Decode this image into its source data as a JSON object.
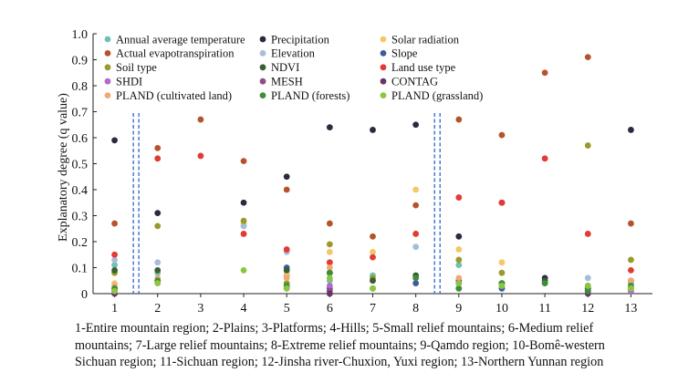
{
  "chart_data": {
    "type": "scatter",
    "ylabel": "Explanatory degree (q value)",
    "xlabel": "",
    "ylim": [
      0,
      1.0
    ],
    "yticks": [
      "0",
      "0.1",
      "0.2",
      "0.3",
      "0.4",
      "0.5",
      "0.6",
      "0.7",
      "0.8",
      "0.9",
      "1.0"
    ],
    "xlim": [
      0.5,
      13.5
    ],
    "x_ticks": [
      "1",
      "2",
      "3",
      "4",
      "5",
      "6",
      "7",
      "8",
      "9",
      "10",
      "11",
      "12",
      "13"
    ],
    "separators_after": [
      1.5,
      8.5
    ],
    "legend_position": "top",
    "series": [
      {
        "name": "Annual average temperature",
        "color": "#6cc3b1",
        "points": [
          [
            1,
            0.11
          ],
          [
            2,
            0.08
          ],
          [
            4,
            0.26
          ],
          [
            5,
            0.07
          ],
          [
            6,
            0.05
          ],
          [
            7,
            0.07
          ],
          [
            9,
            0.11
          ],
          [
            10,
            0.03
          ],
          [
            11,
            0.04
          ],
          [
            12,
            0.06
          ],
          [
            13,
            0.04
          ]
        ]
      },
      {
        "name": "Precipitation",
        "color": "#2b2a3f",
        "points": [
          [
            1,
            0.59
          ],
          [
            2,
            0.31
          ],
          [
            4,
            0.35
          ],
          [
            5,
            0.45
          ],
          [
            6,
            0.64
          ],
          [
            7,
            0.63
          ],
          [
            8,
            0.65
          ],
          [
            9,
            0.22
          ],
          [
            10,
            0.35
          ],
          [
            11,
            0.06
          ],
          [
            12,
            0.02
          ],
          [
            13,
            0.63
          ]
        ]
      },
      {
        "name": "Solar radiation",
        "color": "#f6c667",
        "points": [
          [
            1,
            0.04
          ],
          [
            4,
            0.27
          ],
          [
            5,
            0.08
          ],
          [
            6,
            0.16
          ],
          [
            7,
            0.16
          ],
          [
            8,
            0.4
          ],
          [
            9,
            0.17
          ],
          [
            10,
            0.12
          ],
          [
            12,
            0.02
          ],
          [
            13,
            0.02
          ]
        ]
      },
      {
        "name": "Actual evapotranspiration",
        "color": "#b5542c",
        "points": [
          [
            1,
            0.27
          ],
          [
            2,
            0.56
          ],
          [
            3,
            0.67
          ],
          [
            4,
            0.51
          ],
          [
            5,
            0.4
          ],
          [
            6,
            0.27
          ],
          [
            7,
            0.22
          ],
          [
            8,
            0.34
          ],
          [
            9,
            0.67
          ],
          [
            10,
            0.61
          ],
          [
            11,
            0.85
          ],
          [
            12,
            0.91
          ],
          [
            13,
            0.27
          ]
        ]
      },
      {
        "name": "Elevation",
        "color": "#a6bedc",
        "points": [
          [
            1,
            0.13
          ],
          [
            2,
            0.12
          ],
          [
            4,
            0.26
          ],
          [
            5,
            0.16
          ],
          [
            6,
            0.12
          ],
          [
            7,
            0.05
          ],
          [
            8,
            0.18
          ],
          [
            9,
            0.04
          ],
          [
            10,
            0.02
          ],
          [
            11,
            0.04
          ],
          [
            12,
            0.06
          ],
          [
            13,
            0.05
          ]
        ]
      },
      {
        "name": "Slope",
        "color": "#3f5b9c",
        "points": [
          [
            1,
            0.02
          ],
          [
            2,
            0.05
          ],
          [
            5,
            0.1
          ],
          [
            6,
            0.02
          ],
          [
            8,
            0.04
          ],
          [
            9,
            0.05
          ],
          [
            10,
            0.02
          ],
          [
            12,
            0.02
          ],
          [
            13,
            0.02
          ]
        ]
      },
      {
        "name": "Soil type",
        "color": "#9a9a2c",
        "points": [
          [
            1,
            0.08
          ],
          [
            2,
            0.26
          ],
          [
            4,
            0.28
          ],
          [
            5,
            0.04
          ],
          [
            6,
            0.19
          ],
          [
            7,
            0.06
          ],
          [
            9,
            0.13
          ],
          [
            10,
            0.08
          ],
          [
            12,
            0.57
          ],
          [
            13,
            0.13
          ]
        ]
      },
      {
        "name": "NDVI",
        "color": "#3a5d33",
        "points": [
          [
            1,
            0.09
          ],
          [
            2,
            0.09
          ],
          [
            5,
            0.09
          ],
          [
            6,
            0.08
          ],
          [
            7,
            0.05
          ],
          [
            8,
            0.07
          ],
          [
            9,
            0.04
          ],
          [
            10,
            0.04
          ],
          [
            11,
            0.05
          ],
          [
            12,
            0.03
          ],
          [
            13,
            0.05
          ]
        ]
      },
      {
        "name": "Land use type",
        "color": "#e33a32",
        "points": [
          [
            1,
            0.15
          ],
          [
            2,
            0.52
          ],
          [
            3,
            0.53
          ],
          [
            4,
            0.23
          ],
          [
            5,
            0.17
          ],
          [
            6,
            0.12
          ],
          [
            7,
            0.14
          ],
          [
            8,
            0.23
          ],
          [
            9,
            0.37
          ],
          [
            10,
            0.35
          ],
          [
            11,
            0.52
          ],
          [
            12,
            0.23
          ],
          [
            13,
            0.09
          ]
        ]
      },
      {
        "name": "SHDI",
        "color": "#b36ac4",
        "points": [
          [
            1,
            0.01
          ],
          [
            5,
            0.02
          ],
          [
            6,
            0.03
          ],
          [
            9,
            0.02
          ],
          [
            13,
            0.01
          ]
        ]
      },
      {
        "name": "MESH",
        "color": "#8d4f86",
        "points": [
          [
            1,
            0.01
          ],
          [
            6,
            0.01
          ],
          [
            12,
            0.01
          ]
        ]
      },
      {
        "name": "CONTAG",
        "color": "#6b3468",
        "points": [
          [
            1,
            0.0
          ],
          [
            6,
            0.0
          ],
          [
            12,
            0.0
          ]
        ]
      },
      {
        "name": "PLAND (cultivated land)",
        "color": "#f3a874",
        "points": [
          [
            1,
            0.03
          ],
          [
            2,
            0.06
          ],
          [
            5,
            0.06
          ],
          [
            6,
            0.1
          ],
          [
            9,
            0.06
          ],
          [
            13,
            0.05
          ]
        ]
      },
      {
        "name": "PLAND (forests)",
        "color": "#3c8f38",
        "points": [
          [
            1,
            0.02
          ],
          [
            2,
            0.05
          ],
          [
            5,
            0.03
          ],
          [
            6,
            0.08
          ],
          [
            7,
            0.02
          ],
          [
            8,
            0.06
          ],
          [
            9,
            0.02
          ],
          [
            10,
            0.04
          ],
          [
            11,
            0.04
          ],
          [
            12,
            0.01
          ],
          [
            13,
            0.03
          ]
        ]
      },
      {
        "name": "PLAND (grassland)",
        "color": "#8cc63f",
        "points": [
          [
            1,
            0.01
          ],
          [
            2,
            0.04
          ],
          [
            4,
            0.09
          ],
          [
            5,
            0.02
          ],
          [
            6,
            0.06
          ],
          [
            7,
            0.02
          ],
          [
            9,
            0.04
          ],
          [
            10,
            0.03
          ],
          [
            12,
            0.03
          ],
          [
            13,
            0.02
          ]
        ]
      }
    ]
  },
  "caption": {
    "line1": "1-Entire mountain region; 2-Plains; 3-Platforms; 4-Hills; 5-Small relief mountains; 6-Medium relief",
    "line2": "mountains; 7-Large relief mountains; 8-Extreme relief mountains; 9-Qamdo region; 10-Bomê-western",
    "line3": "Sichuan region; 11-Sichuan region; 12-Jinsha river-Chuxion, Yuxi region; 13-Northern Yunnan region"
  }
}
